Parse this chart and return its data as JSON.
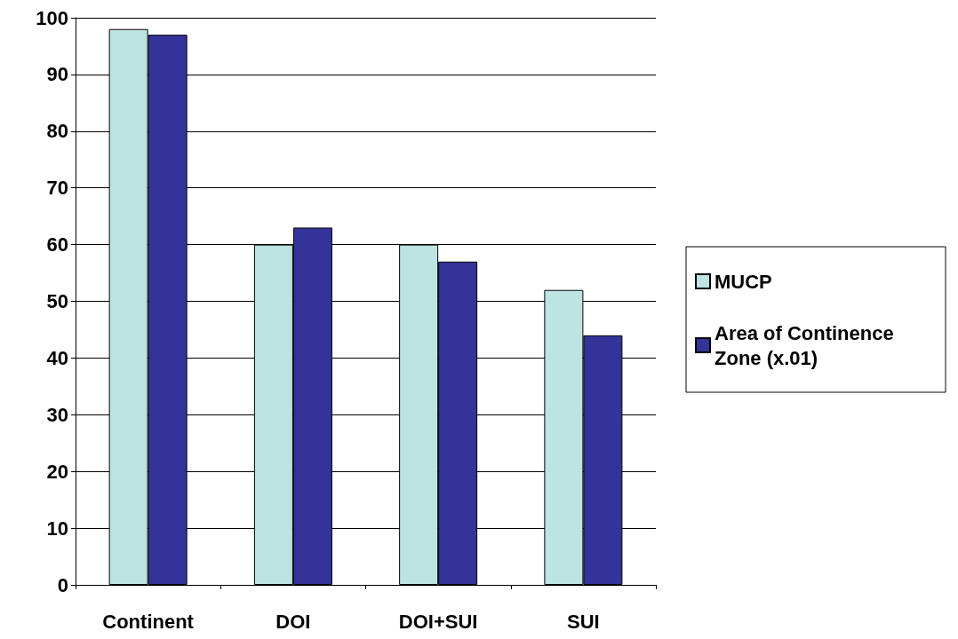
{
  "chart_data": {
    "type": "bar",
    "categories": [
      "Continent",
      "DOI",
      "DOI+SUI",
      "SUI"
    ],
    "series": [
      {
        "name": "MUCP",
        "color": "#bde3e3",
        "values": [
          98,
          60,
          60,
          52
        ]
      },
      {
        "name": "Area of Continence Zone (x.01)",
        "color": "#333399",
        "values": [
          97,
          63,
          57,
          44
        ]
      }
    ],
    "ylim": [
      0,
      100
    ],
    "yticks": [
      0,
      10,
      20,
      30,
      40,
      50,
      60,
      70,
      80,
      90,
      100
    ],
    "grid": "y",
    "legend": "right"
  }
}
